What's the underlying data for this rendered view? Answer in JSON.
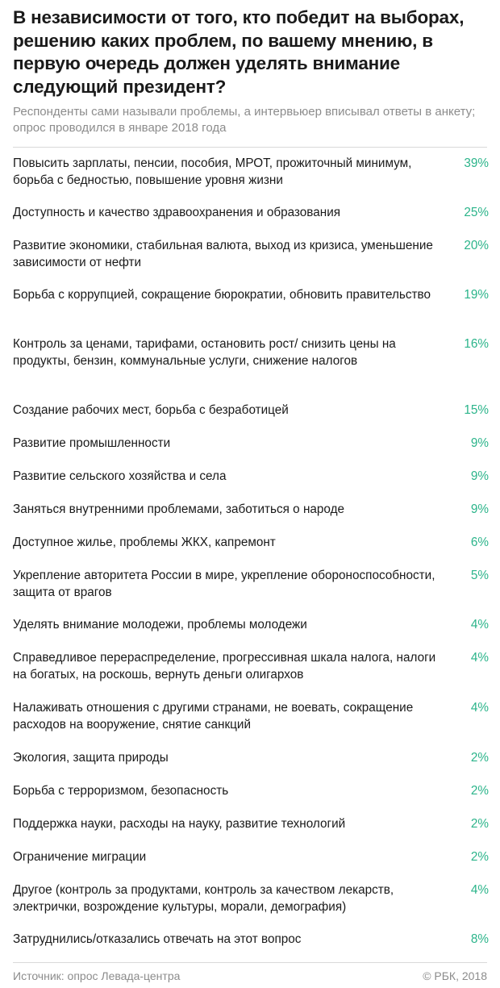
{
  "title": "В независимости от того, кто победит на выборах, решению каких проблем, по вашему мнению, в первую очередь должен уделять внимание следующий президент?",
  "subtitle": "Респонденты сами называли проблемы, а интервьюер вписывал ответы в анкету; опрос проводился в январе 2018 года",
  "accent_color": "#2bb48a",
  "chart_data": {
    "type": "table",
    "title": "В независимости от того, кто победит на выборах, решению каких проблем, по вашему мнению, в первую очередь должен уделять внимание следующий президент?",
    "unit": "%",
    "grid": false,
    "rows": [
      {
        "label": "Повысить зарплаты, пенсии, пособия, МРОТ, прожиточный минимум, борьба с бедностью, повышение уровня жизни",
        "value": 39,
        "display": "39%"
      },
      {
        "label": "Доступность и качество здравоохранения и образования",
        "value": 25,
        "display": "25%"
      },
      {
        "label": "Развитие экономики, стабильная валюта, выход из кризиса, уменьшение зависимости от нефти",
        "value": 20,
        "display": "20%"
      },
      {
        "label": "Борьба с коррупцией, сокращение бюрократии, обновить правительство",
        "value": 19,
        "display": "19%"
      },
      {
        "label": "Контроль за ценами, тарифами, остановить рост/ снизить цены на продукты, бензин, коммунальные услуги, снижение налогов",
        "value": 16,
        "display": "16%"
      },
      {
        "label": "Создание рабочих мест, борьба с безработицей",
        "value": 15,
        "display": "15%"
      },
      {
        "label": "Развитие промышленности",
        "value": 9,
        "display": "9%"
      },
      {
        "label": "Развитие сельского хозяйства и села",
        "value": 9,
        "display": "9%"
      },
      {
        "label": "Заняться внутренними проблемами, заботиться о народе",
        "value": 9,
        "display": "9%"
      },
      {
        "label": "Доступное жилье, проблемы ЖКХ, капремонт",
        "value": 6,
        "display": "6%"
      },
      {
        "label": "Укрепление авторитета России в мире, укрепление обороноспособности, защита от врагов",
        "value": 5,
        "display": "5%"
      },
      {
        "label": "Уделять внимание молодежи, проблемы молодежи",
        "value": 4,
        "display": "4%"
      },
      {
        "label": "Справедливое перераспределение, прогрессивная шкала налога, налоги на богатых, на роскошь, вернуть деньги олигархов",
        "value": 4,
        "display": "4%"
      },
      {
        "label": "Налаживать отношения с другими странами, не воевать, сокращение расходов на вооружение, снятие санкций",
        "value": 4,
        "display": "4%"
      },
      {
        "label": "Экология, защита природы",
        "value": 2,
        "display": "2%"
      },
      {
        "label": "Борьба с терроризмом, безопасность",
        "value": 2,
        "display": "2%"
      },
      {
        "label": "Поддержка науки, расходы на науку, развитие технологий",
        "value": 2,
        "display": "2%"
      },
      {
        "label": "Ограничение миграции",
        "value": 2,
        "display": "2%"
      },
      {
        "label": "Другое (контроль за продуктами, контроль за качеством лекарств, электрички, возрождение культуры, морали, демография)",
        "value": 4,
        "display": "4%"
      },
      {
        "label": "Затруднились/отказались отвечать на этот вопрос",
        "value": 8,
        "display": "8%"
      }
    ]
  },
  "footer": {
    "source": "Источник: опрос Левада-центра",
    "copyright": "© РБК, 2018"
  }
}
